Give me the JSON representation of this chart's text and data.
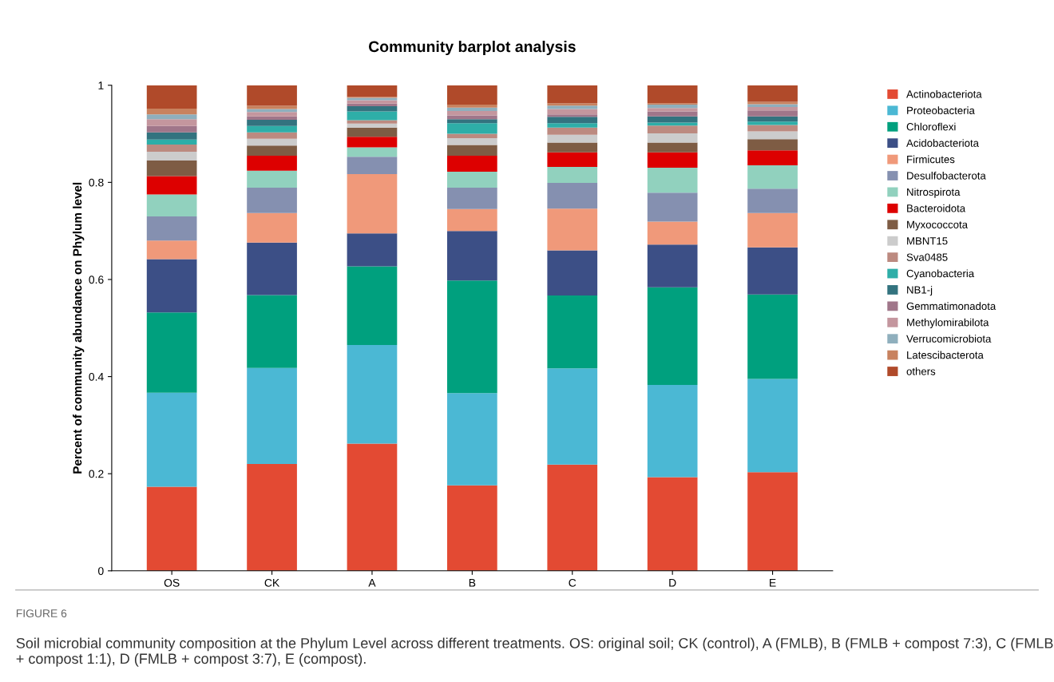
{
  "chart_data": {
    "type": "bar",
    "stacked": true,
    "title": "Community barplot analysis",
    "ylabel": "Percent of community abundance on Phylum level",
    "categories": [
      "OS",
      "CK",
      "A",
      "B",
      "C",
      "D",
      "E"
    ],
    "ylim": [
      0,
      1
    ],
    "yticks": [
      0,
      0.2,
      0.4,
      0.6,
      0.8,
      1
    ],
    "grid": false,
    "legend": "right",
    "series": [
      {
        "name": "Actinobacteriota",
        "color": "#e34a33",
        "values": [
          0.173,
          0.22,
          0.262,
          0.176,
          0.219,
          0.193,
          0.203
        ]
      },
      {
        "name": "Proteobacteria",
        "color": "#4bb8d4",
        "values": [
          0.194,
          0.198,
          0.203,
          0.19,
          0.198,
          0.19,
          0.192
        ]
      },
      {
        "name": "Chloroflexi",
        "color": "#00a07e",
        "values": [
          0.165,
          0.15,
          0.162,
          0.232,
          0.15,
          0.201,
          0.174
        ]
      },
      {
        "name": "Acidobacteriota",
        "color": "#3c4f86",
        "values": [
          0.11,
          0.108,
          0.068,
          0.102,
          0.093,
          0.088,
          0.097
        ]
      },
      {
        "name": "Firmicutes",
        "color": "#f0997a",
        "values": [
          0.038,
          0.061,
          0.122,
          0.045,
          0.086,
          0.047,
          0.071
        ]
      },
      {
        "name": "Desulfobacterota",
        "color": "#8590b0",
        "values": [
          0.05,
          0.052,
          0.036,
          0.044,
          0.053,
          0.06,
          0.05
        ]
      },
      {
        "name": "Nitrospirota",
        "color": "#91d1be",
        "values": [
          0.045,
          0.035,
          0.019,
          0.033,
          0.033,
          0.051,
          0.048
        ]
      },
      {
        "name": "Bacteroidota",
        "color": "#dd0000",
        "values": [
          0.038,
          0.031,
          0.022,
          0.033,
          0.03,
          0.032,
          0.031
        ]
      },
      {
        "name": "Myxococcota",
        "color": "#7e5c44",
        "values": [
          0.032,
          0.021,
          0.019,
          0.022,
          0.02,
          0.02,
          0.023
        ]
      },
      {
        "name": "MBNT15",
        "color": "#cccccc",
        "values": [
          0.018,
          0.014,
          0.008,
          0.014,
          0.016,
          0.019,
          0.016
        ]
      },
      {
        "name": "Sva0485",
        "color": "#bc8a80",
        "values": [
          0.015,
          0.013,
          0.007,
          0.009,
          0.015,
          0.016,
          0.013
        ]
      },
      {
        "name": "Cyanobacteria",
        "color": "#2eaea8",
        "values": [
          0.01,
          0.013,
          0.018,
          0.022,
          0.009,
          0.006,
          0.007
        ]
      },
      {
        "name": "NB1-j",
        "color": "#33737f",
        "values": [
          0.015,
          0.013,
          0.011,
          0.008,
          0.013,
          0.013,
          0.011
        ]
      },
      {
        "name": "Gemmatimonadota",
        "color": "#a0768a",
        "values": [
          0.013,
          0.007,
          0.005,
          0.008,
          0.005,
          0.01,
          0.012
        ]
      },
      {
        "name": "Methylomirabilota",
        "color": "#c4969e",
        "values": [
          0.014,
          0.009,
          0.007,
          0.009,
          0.011,
          0.007,
          0.007
        ]
      },
      {
        "name": "Verrucomicrobiota",
        "color": "#8fafbd",
        "values": [
          0.01,
          0.006,
          0.005,
          0.007,
          0.007,
          0.007,
          0.006
        ]
      },
      {
        "name": "Latescibacterota",
        "color": "#c8825f",
        "values": [
          0.012,
          0.007,
          0.002,
          0.006,
          0.005,
          0.003,
          0.005
        ]
      },
      {
        "name": "others",
        "color": "#b04a2a",
        "values": [
          0.048,
          0.042,
          0.024,
          0.04,
          0.037,
          0.037,
          0.034
        ]
      }
    ],
    "annotations": [
      "FIGURE 6",
      "Soil microbial community composition at the Phylum Level across different treatments. OS: original soil; CK (control), A (FMLB), B (FMLB + compost 7:3), C (FMLB + compost 1:1), D (FMLB + compost 3:7), E (compost)."
    ]
  }
}
